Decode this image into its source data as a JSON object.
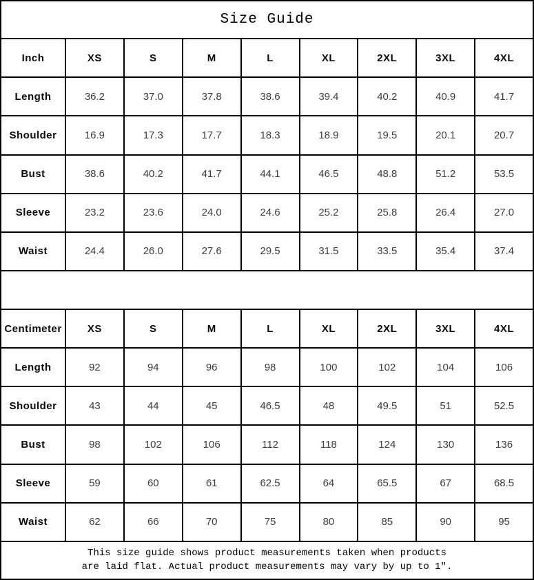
{
  "title": "Size Guide",
  "tables": [
    {
      "unit_label": "Inch",
      "sizes": [
        "XS",
        "S",
        "M",
        "L",
        "XL",
        "2XL",
        "3XL",
        "4XL"
      ],
      "rows": [
        {
          "label": "Length",
          "values": [
            "36.2",
            "37.0",
            "37.8",
            "38.6",
            "39.4",
            "40.2",
            "40.9",
            "41.7"
          ]
        },
        {
          "label": "Shoulder",
          "values": [
            "16.9",
            "17.3",
            "17.7",
            "18.3",
            "18.9",
            "19.5",
            "20.1",
            "20.7"
          ]
        },
        {
          "label": "Bust",
          "values": [
            "38.6",
            "40.2",
            "41.7",
            "44.1",
            "46.5",
            "48.8",
            "51.2",
            "53.5"
          ]
        },
        {
          "label": "Sleeve",
          "values": [
            "23.2",
            "23.6",
            "24.0",
            "24.6",
            "25.2",
            "25.8",
            "26.4",
            "27.0"
          ]
        },
        {
          "label": "Waist",
          "values": [
            "24.4",
            "26.0",
            "27.6",
            "29.5",
            "31.5",
            "33.5",
            "35.4",
            "37.4"
          ]
        }
      ]
    },
    {
      "unit_label": "Centimeter",
      "sizes": [
        "XS",
        "S",
        "M",
        "L",
        "XL",
        "2XL",
        "3XL",
        "4XL"
      ],
      "rows": [
        {
          "label": "Length",
          "values": [
            "92",
            "94",
            "96",
            "98",
            "100",
            "102",
            "104",
            "106"
          ]
        },
        {
          "label": "Shoulder",
          "values": [
            "43",
            "44",
            "45",
            "46.5",
            "48",
            "49.5",
            "51",
            "52.5"
          ]
        },
        {
          "label": "Bust",
          "values": [
            "98",
            "102",
            "106",
            "112",
            "118",
            "124",
            "130",
            "136"
          ]
        },
        {
          "label": "Sleeve",
          "values": [
            "59",
            "60",
            "61",
            "62.5",
            "64",
            "65.5",
            "67",
            "68.5"
          ]
        },
        {
          "label": "Waist",
          "values": [
            "62",
            "66",
            "70",
            "75",
            "80",
            "85",
            "90",
            "95"
          ]
        }
      ]
    }
  ],
  "footer": {
    "line1": "This size guide shows product measurements taken when products",
    "line2": "are laid flat. Actual product measurements may vary by up to 1″."
  },
  "colors": {
    "border": "#000000",
    "label_text": "#0a0a0a",
    "value_text": "#3d3d3d",
    "background": "#ffffff"
  }
}
